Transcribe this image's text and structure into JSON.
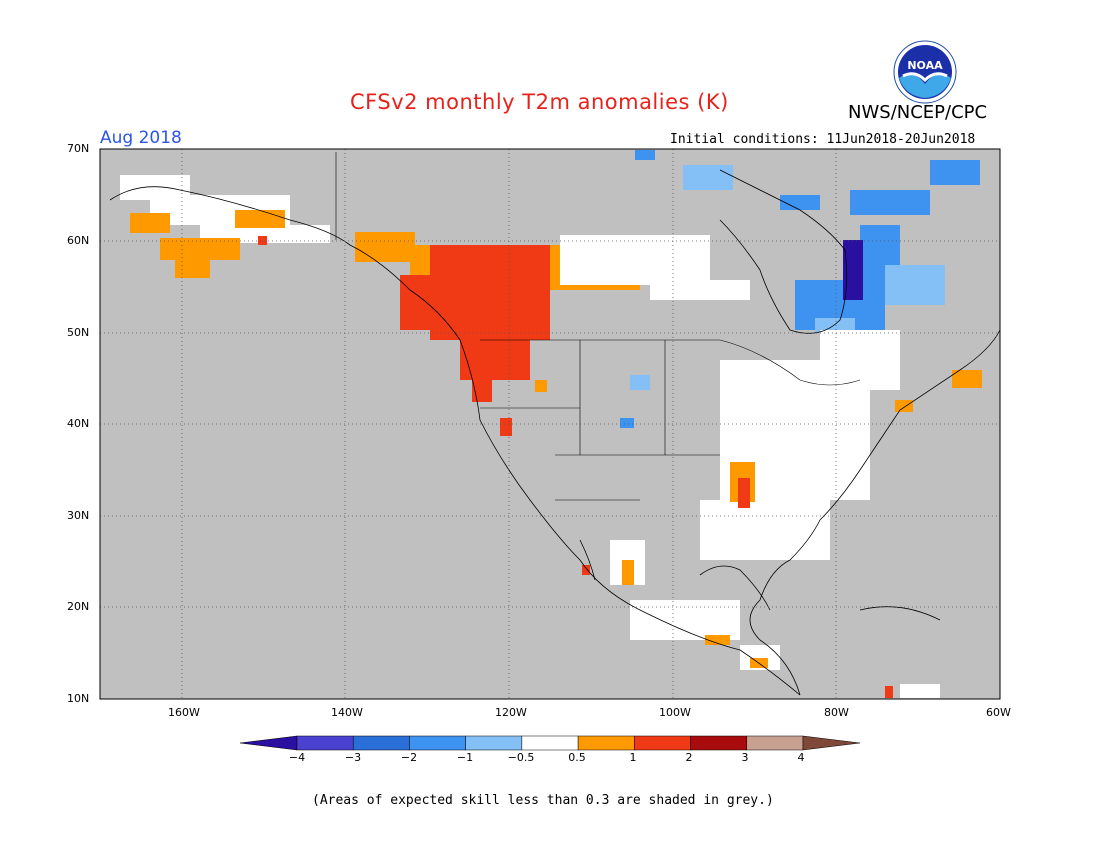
{
  "header": {
    "title": "CFSv2 monthly T2m anomalies (K)",
    "agency": "NWS/NCEP/CPC",
    "logo_text": "NOAA",
    "month": "Aug 2018",
    "initial_conditions": "Initial conditions: 11Jun2018-20Jun2018"
  },
  "map": {
    "lon_range": [
      -170,
      -60
    ],
    "lat_range": [
      10,
      70
    ],
    "lon_ticks": [
      "160W",
      "140W",
      "120W",
      "100W",
      "80W",
      "60W"
    ],
    "lat_ticks": [
      "70N",
      "60N",
      "50N",
      "40N",
      "30N",
      "20N",
      "10N"
    ],
    "land_color": "#c0c0c0",
    "ocean_color": "#c0c0c0",
    "grid": "dotted"
  },
  "colorbar": {
    "ticks": [
      "−4",
      "−3",
      "−2",
      "−1",
      "−0.5",
      "0.5",
      "1",
      "2",
      "3",
      "4"
    ],
    "colors": [
      "#2a0fa0",
      "#4a41d0",
      "#2a6fd8",
      "#3f93f0",
      "#84c0f6",
      "#ffffff",
      "#ff9900",
      "#f03a16",
      "#a80c0c",
      "#c8a090",
      "#804838"
    ]
  },
  "footer": {
    "note": "(Areas of expected skill less than 0.3 are shaded in grey.)"
  }
}
